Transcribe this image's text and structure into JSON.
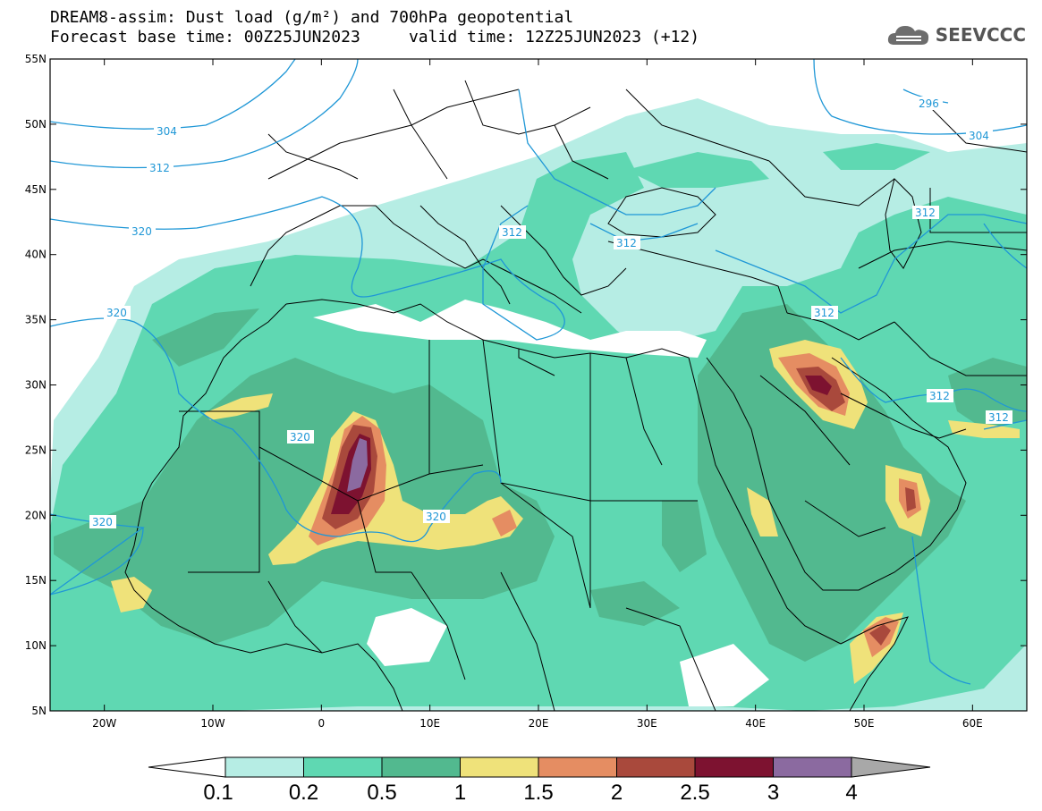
{
  "title_line1": "DREAM8-assim: Dust load (g/m²) and 700hPa geopotential",
  "title_line2": "Forecast base time: 00Z25JUN2023     valid time: 12Z25JUN2023 (+12)",
  "logo": {
    "icon": "cloud-icon",
    "text": "SEEVCCC"
  },
  "map": {
    "lon_ticks": [
      "20W",
      "10W",
      "0",
      "10E",
      "20E",
      "30E",
      "40E",
      "50E",
      "60E"
    ],
    "lat_ticks": [
      "55N",
      "50N",
      "45N",
      "40N",
      "35N",
      "30N",
      "25N",
      "20N",
      "15N",
      "10N",
      "5N"
    ],
    "lon_range": [
      -25,
      65
    ],
    "lat_range": [
      5,
      55
    ],
    "geopotential_labels": [
      "304",
      "312",
      "320",
      "320",
      "320",
      "320",
      "320",
      "312",
      "312",
      "296",
      "304",
      "312",
      "312",
      "312",
      "312"
    ]
  },
  "colorbar": {
    "labels": [
      "0.1",
      "0.2",
      "0.5",
      "1",
      "1.5",
      "2",
      "2.5",
      "3",
      "4"
    ],
    "colors": [
      "#b6ede4",
      "#5fd8b2",
      "#52b98f",
      "#efe27a",
      "#e58d62",
      "#a9493c",
      "#7d1230",
      "#8b6aa0"
    ],
    "under_color": "#ffffff",
    "over_color": "#a8a8a8"
  },
  "colors": {
    "geopotential_contour": "#1f97d6",
    "borders": "#000000"
  }
}
